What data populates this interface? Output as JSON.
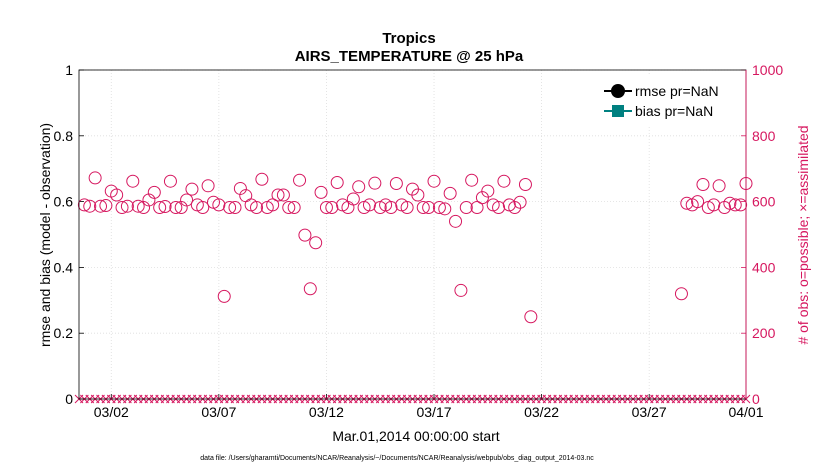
{
  "chart_data": {
    "type": "scatter",
    "title": "Tropics",
    "subtitle": "AIRS_TEMPERATURE @ 25 hPa",
    "xlabel": "Mar.01,2014 00:00:00 start",
    "ylabel_left": "rmse and bias (model - observation)",
    "ylabel_right": "# of obs: o=possible; ×=assimilated",
    "footnote": "data file: /Users/gharamti/Documents/NCAR/Reanalysis/~/Documents/NCAR/Reanalysis/webpub/obs_diag_output_2014-03.nc",
    "x_range_days": [
      0.5,
      31.5
    ],
    "x_ticks": [
      {
        "day": 2,
        "label": "03/02"
      },
      {
        "day": 7,
        "label": "03/07"
      },
      {
        "day": 12,
        "label": "03/12"
      },
      {
        "day": 17,
        "label": "03/17"
      },
      {
        "day": 22,
        "label": "03/22"
      },
      {
        "day": 27,
        "label": "03/27"
      },
      {
        "day": 32,
        "label": "04/01"
      }
    ],
    "ylim_left": [
      0,
      1
    ],
    "yticks_left": [
      "0",
      "0.2",
      "0.4",
      "0.6",
      "0.8",
      "1"
    ],
    "ylim_right": [
      0,
      1000
    ],
    "yticks_right": [
      "0",
      "200",
      "400",
      "600",
      "800",
      "1000"
    ],
    "grid": true,
    "legend_position": "top-right",
    "colors": {
      "rmse": "#000000",
      "bias": "#008080",
      "obs": "#d6175f"
    },
    "series": [
      {
        "name": "rmse pr=NaN",
        "values": []
      },
      {
        "name": "bias pr=NaN",
        "values": []
      }
    ],
    "obs_possible": [
      [
        0.75,
        590
      ],
      [
        1,
        586
      ],
      [
        1.25,
        672
      ],
      [
        1.5,
        586
      ],
      [
        1.75,
        588
      ],
      [
        2,
        632
      ],
      [
        2.25,
        620
      ],
      [
        2.5,
        582
      ],
      [
        2.75,
        586
      ],
      [
        3,
        662
      ],
      [
        3.25,
        586
      ],
      [
        3.5,
        582
      ],
      [
        3.75,
        605
      ],
      [
        4,
        628
      ],
      [
        4.25,
        582
      ],
      [
        4.5,
        585
      ],
      [
        4.75,
        662
      ],
      [
        5,
        582
      ],
      [
        5.25,
        582
      ],
      [
        5.5,
        605
      ],
      [
        5.75,
        638
      ],
      [
        6,
        590
      ],
      [
        6.25,
        582
      ],
      [
        6.5,
        648
      ],
      [
        6.75,
        598
      ],
      [
        7,
        590
      ],
      [
        7.25,
        312
      ],
      [
        7.5,
        582
      ],
      [
        7.75,
        582
      ],
      [
        8,
        640
      ],
      [
        8.25,
        618
      ],
      [
        8.5,
        590
      ],
      [
        8.75,
        582
      ],
      [
        9,
        668
      ],
      [
        9.25,
        582
      ],
      [
        9.5,
        590
      ],
      [
        9.75,
        620
      ],
      [
        10,
        620
      ],
      [
        10.25,
        582
      ],
      [
        10.5,
        582
      ],
      [
        10.75,
        665
      ],
      [
        11,
        498
      ],
      [
        11.25,
        335
      ],
      [
        11.5,
        475
      ],
      [
        11.75,
        628
      ],
      [
        12,
        582
      ],
      [
        12.25,
        582
      ],
      [
        12.5,
        658
      ],
      [
        12.75,
        590
      ],
      [
        13,
        582
      ],
      [
        13.25,
        608
      ],
      [
        13.5,
        645
      ],
      [
        13.75,
        582
      ],
      [
        14,
        590
      ],
      [
        14.25,
        656
      ],
      [
        14.5,
        582
      ],
      [
        14.75,
        590
      ],
      [
        15,
        582
      ],
      [
        15.25,
        655
      ],
      [
        15.5,
        590
      ],
      [
        15.75,
        582
      ],
      [
        16,
        638
      ],
      [
        16.25,
        620
      ],
      [
        16.5,
        582
      ],
      [
        16.75,
        582
      ],
      [
        17,
        662
      ],
      [
        17.25,
        582
      ],
      [
        17.5,
        578
      ],
      [
        17.75,
        625
      ],
      [
        18,
        540
      ],
      [
        18.25,
        330
      ],
      [
        18.5,
        582
      ],
      [
        18.75,
        665
      ],
      [
        19,
        582
      ],
      [
        19.25,
        612
      ],
      [
        19.5,
        632
      ],
      [
        19.75,
        590
      ],
      [
        20,
        582
      ],
      [
        20.25,
        662
      ],
      [
        20.5,
        590
      ],
      [
        20.75,
        582
      ],
      [
        21,
        598
      ],
      [
        21.25,
        652
      ],
      [
        21.5,
        250
      ],
      [
        28.5,
        320
      ],
      [
        28.75,
        595
      ],
      [
        29,
        590
      ],
      [
        29.25,
        600
      ],
      [
        29.5,
        652
      ],
      [
        29.75,
        582
      ],
      [
        30,
        590
      ],
      [
        30.25,
        648
      ],
      [
        30.5,
        582
      ],
      [
        30.75,
        595
      ],
      [
        31,
        590
      ],
      [
        31.25,
        590
      ],
      [
        31.5,
        655
      ]
    ],
    "obs_assimilated_value": 0,
    "obs_assimilated_days": [
      0.5,
      31.5
    ],
    "legend_entries": [
      {
        "label": "rmse pr=NaN",
        "marker": "circle",
        "color": "#000000"
      },
      {
        "label": "bias pr=NaN",
        "marker": "square",
        "color": "#008080"
      }
    ]
  }
}
